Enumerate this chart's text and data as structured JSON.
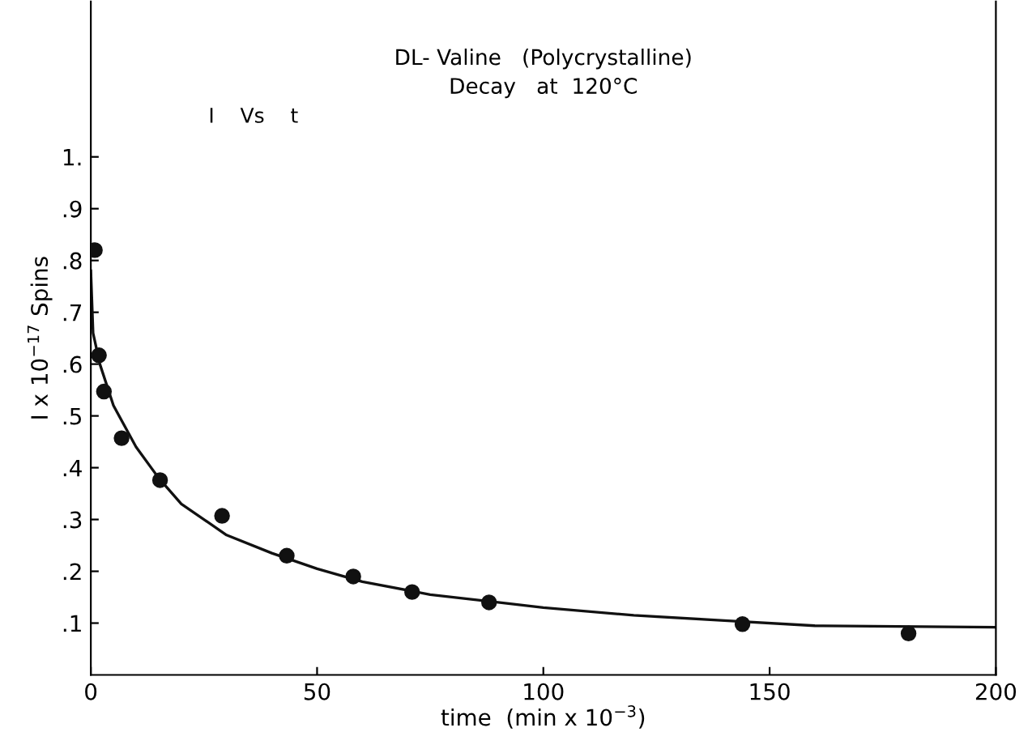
{
  "chart_data": {
    "type": "scatter",
    "title": "DL- Valine   (Polycrystalline)\nDecay   at  120°C",
    "xlabel": "time  (min x 10$^{−3}$)",
    "ylabel": "I x 10$^{−17}$ Spins",
    "annotations": [
      "I    Vs    t"
    ],
    "series": [
      {
        "color": "#111111",
        "marker": "circle",
        "x": [
          0.9,
          1.8,
          2.9,
          6.8,
          15.3,
          29,
          43.3,
          58,
          71,
          88,
          144,
          180.7
        ],
        "values": [
          0.82,
          0.617,
          0.547,
          0.457,
          0.376,
          0.307,
          0.23,
          0.19,
          0.16,
          0.14,
          0.098,
          0.08
        ]
      },
      {
        "type": "line",
        "color": "#111111",
        "line_style": "solid",
        "x": [
          0,
          0.5,
          2,
          5,
          10,
          15,
          20,
          30,
          40,
          50,
          60,
          75,
          90,
          100,
          120,
          140,
          160,
          200
        ],
        "values": [
          0.78,
          0.66,
          0.6,
          0.52,
          0.44,
          0.38,
          0.33,
          0.27,
          0.235,
          0.205,
          0.18,
          0.155,
          0.14,
          0.13,
          0.115,
          0.105,
          0.095,
          0.092
        ]
      }
    ],
    "xlim": [
      0,
      200
    ],
    "xticks": [
      0,
      50,
      100,
      150,
      200
    ],
    "ylim": [
      0,
      1.3
    ],
    "yticks": [
      {
        "value": 0.1,
        "label": ".1"
      },
      {
        "value": 0.2,
        "label": ".2"
      },
      {
        "value": 0.3,
        "label": ".3"
      },
      {
        "value": 0.4,
        "label": ".4"
      },
      {
        "value": 0.5,
        "label": ".5"
      },
      {
        "value": 0.6,
        "label": ".6"
      },
      {
        "value": 0.7,
        "label": ".7"
      },
      {
        "value": 0.8,
        "label": ".8"
      },
      {
        "value": 0.9,
        "label": ".9"
      },
      {
        "value": 1.0,
        "label": "1."
      }
    ],
    "grid": false,
    "legend": false
  }
}
